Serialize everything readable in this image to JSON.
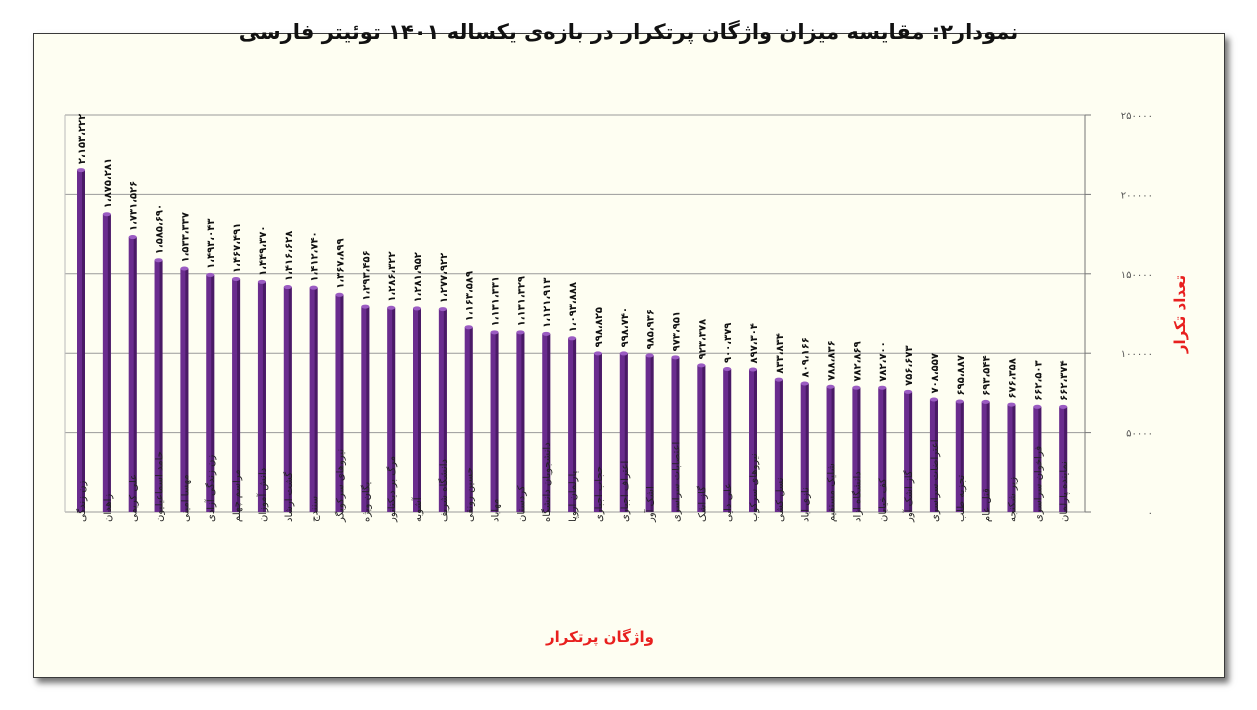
{
  "chart_data": {
    "type": "bar",
    "title": "نمودار۲: مقایسه میزان واژگان پرتکرار در بازه‌ی یکساله ۱۴۰۱ توئیتر فارسی",
    "xlabel": "واژگان پرتکرار",
    "ylabel": "تعداد تکرار",
    "ylim": [
      0,
      250000
    ],
    "y_ticks": [
      0,
      50000,
      100000,
      150000,
      200000,
      250000
    ],
    "y_tick_labels": [
      "۰",
      "۵۰۰۰۰",
      "۱۰۰۰۰۰",
      "۱۵۰۰۰۰",
      "۲۰۰۰۰۰",
      "۲۵۰۰۰۰"
    ],
    "y_axis_side": "right",
    "grid": true,
    "bar_color": "#6a2c8e",
    "categories": [
      "زن زندگی",
      "زاهدان",
      "علی کریمی",
      "حامد اسماعیلیون",
      "مهسا امینی",
      "زن زندگی آزادی",
      "مراسم چهلم",
      "دانش آموزان",
      "گشت ارشاد",
      "سنندج",
      "نیروهای سرکوبگر",
      "یگان ویژه",
      "مرگ بر دیکتاتور",
      "آشوبه",
      "دانشگاه شریف",
      "حسین رونقی",
      "مهاباد",
      "کردستان",
      "دانشجویان دانشگاه",
      "پارلمان اروپا",
      "حجاب اجباری",
      "اعتراف اجباری",
      "اشک آور",
      "اعتصابات سراسری",
      "گاز اشک",
      "علی دایی",
      "نیروهای سرکوب",
      "نسل کشی",
      "نازی اباد",
      "شلیک مستقیم",
      "دانشگاه ازاد",
      "کف خیابان",
      "گاز اشک آور",
      "اعتراضات سراسری",
      "تجزیه طلب",
      "قتل عام",
      "زیر شکنجه",
      "فراخوان سراسری",
      "نماینده پارلمان"
    ],
    "values": [
      2153222,
      1875281,
      1731526,
      1585690,
      1533337,
      1493043,
      1467491,
      1449370,
      1416628,
      1412740,
      1367899,
      1293456,
      1286322,
      1281952,
      1277922,
      1163589,
      1131331,
      1131329,
      1121913,
      1093888,
      998825,
      998740,
      985936,
      973951,
      923378,
      900379,
      897304,
      833834,
      809166,
      788836,
      782869,
      782700,
      756673,
      708557,
      695887,
      693544,
      676358,
      662503,
      662374
    ],
    "value_labels": [
      "۲،۱۵۳،۲۲۲",
      "۱،۸۷۵،۲۸۱",
      "۱،۷۳۱،۵۲۶",
      "۱،۵۸۵،۶۹۰",
      "۱،۵۳۳،۳۳۷",
      "۱،۴۹۳،۰۴۳",
      "۱،۴۶۷،۴۹۱",
      "۱،۴۴۹،۳۷۰",
      "۱،۴۱۶،۶۲۸",
      "۱،۴۱۲،۷۴۰",
      "۱،۳۶۷،۸۹۹",
      "۱،۲۹۳،۴۵۶",
      "۱،۲۸۶،۳۲۲",
      "۱،۲۸۱،۹۵۲",
      "۱،۲۷۷،۹۲۲",
      "۱،۱۶۳،۵۸۹",
      "۱،۱۳۱،۳۳۱",
      "۱،۱۳۱،۳۲۹",
      "۱،۱۲۱،۹۱۳",
      "۱،۰۹۳،۸۸۸",
      "۹۹۸،۸۲۵",
      "۹۹۸،۷۴۰",
      "۹۸۵،۹۳۶",
      "۹۷۳،۹۵۱",
      "۹۲۳،۳۷۸",
      "۹۰۰،۳۷۹",
      "۸۹۷،۳۰۴",
      "۸۳۳،۸۳۴",
      "۸۰۹،۱۶۶",
      "۷۸۸،۸۳۶",
      "۷۸۲،۸۶۹",
      "۷۸۲،۷۰۰",
      "۷۵۶،۶۷۳",
      "۷۰۸،۵۵۷",
      "۶۹۵،۸۸۷",
      "۶۹۳،۵۴۴",
      "۶۷۶،۳۵۸",
      "۶۶۲،۵۰۳",
      "۶۶۲،۳۷۴"
    ]
  }
}
